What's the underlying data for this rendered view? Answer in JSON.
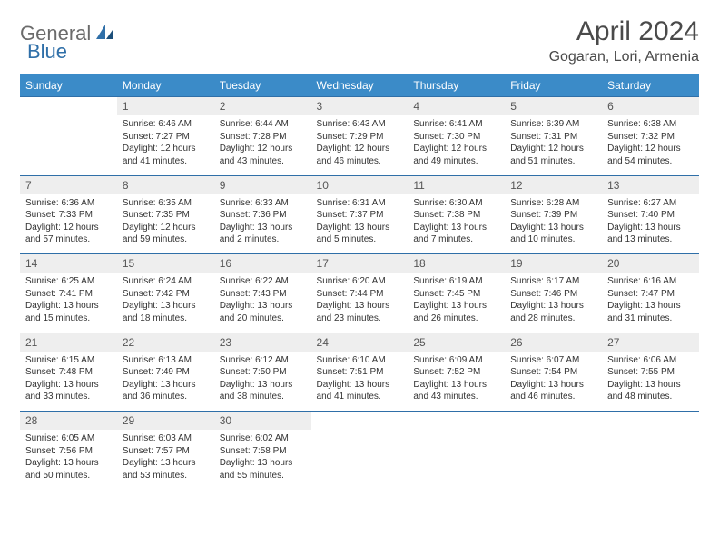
{
  "logo": {
    "part1": "General",
    "part2": "Blue"
  },
  "title": "April 2024",
  "location": "Gogaran, Lori, Armenia",
  "colors": {
    "header_bg": "#3b8bc8",
    "header_text": "#ffffff",
    "daynum_bg": "#eeeeee",
    "border": "#2f6fa8",
    "body_text": "#333333",
    "logo_gray": "#6b6b6b",
    "logo_blue": "#2f6fa8"
  },
  "weekdays": [
    "Sunday",
    "Monday",
    "Tuesday",
    "Wednesday",
    "Thursday",
    "Friday",
    "Saturday"
  ],
  "weeks": [
    [
      null,
      {
        "n": "1",
        "sr": "Sunrise: 6:46 AM",
        "ss": "Sunset: 7:27 PM",
        "dl1": "Daylight: 12 hours",
        "dl2": "and 41 minutes."
      },
      {
        "n": "2",
        "sr": "Sunrise: 6:44 AM",
        "ss": "Sunset: 7:28 PM",
        "dl1": "Daylight: 12 hours",
        "dl2": "and 43 minutes."
      },
      {
        "n": "3",
        "sr": "Sunrise: 6:43 AM",
        "ss": "Sunset: 7:29 PM",
        "dl1": "Daylight: 12 hours",
        "dl2": "and 46 minutes."
      },
      {
        "n": "4",
        "sr": "Sunrise: 6:41 AM",
        "ss": "Sunset: 7:30 PM",
        "dl1": "Daylight: 12 hours",
        "dl2": "and 49 minutes."
      },
      {
        "n": "5",
        "sr": "Sunrise: 6:39 AM",
        "ss": "Sunset: 7:31 PM",
        "dl1": "Daylight: 12 hours",
        "dl2": "and 51 minutes."
      },
      {
        "n": "6",
        "sr": "Sunrise: 6:38 AM",
        "ss": "Sunset: 7:32 PM",
        "dl1": "Daylight: 12 hours",
        "dl2": "and 54 minutes."
      }
    ],
    [
      {
        "n": "7",
        "sr": "Sunrise: 6:36 AM",
        "ss": "Sunset: 7:33 PM",
        "dl1": "Daylight: 12 hours",
        "dl2": "and 57 minutes."
      },
      {
        "n": "8",
        "sr": "Sunrise: 6:35 AM",
        "ss": "Sunset: 7:35 PM",
        "dl1": "Daylight: 12 hours",
        "dl2": "and 59 minutes."
      },
      {
        "n": "9",
        "sr": "Sunrise: 6:33 AM",
        "ss": "Sunset: 7:36 PM",
        "dl1": "Daylight: 13 hours",
        "dl2": "and 2 minutes."
      },
      {
        "n": "10",
        "sr": "Sunrise: 6:31 AM",
        "ss": "Sunset: 7:37 PM",
        "dl1": "Daylight: 13 hours",
        "dl2": "and 5 minutes."
      },
      {
        "n": "11",
        "sr": "Sunrise: 6:30 AM",
        "ss": "Sunset: 7:38 PM",
        "dl1": "Daylight: 13 hours",
        "dl2": "and 7 minutes."
      },
      {
        "n": "12",
        "sr": "Sunrise: 6:28 AM",
        "ss": "Sunset: 7:39 PM",
        "dl1": "Daylight: 13 hours",
        "dl2": "and 10 minutes."
      },
      {
        "n": "13",
        "sr": "Sunrise: 6:27 AM",
        "ss": "Sunset: 7:40 PM",
        "dl1": "Daylight: 13 hours",
        "dl2": "and 13 minutes."
      }
    ],
    [
      {
        "n": "14",
        "sr": "Sunrise: 6:25 AM",
        "ss": "Sunset: 7:41 PM",
        "dl1": "Daylight: 13 hours",
        "dl2": "and 15 minutes."
      },
      {
        "n": "15",
        "sr": "Sunrise: 6:24 AM",
        "ss": "Sunset: 7:42 PM",
        "dl1": "Daylight: 13 hours",
        "dl2": "and 18 minutes."
      },
      {
        "n": "16",
        "sr": "Sunrise: 6:22 AM",
        "ss": "Sunset: 7:43 PM",
        "dl1": "Daylight: 13 hours",
        "dl2": "and 20 minutes."
      },
      {
        "n": "17",
        "sr": "Sunrise: 6:20 AM",
        "ss": "Sunset: 7:44 PM",
        "dl1": "Daylight: 13 hours",
        "dl2": "and 23 minutes."
      },
      {
        "n": "18",
        "sr": "Sunrise: 6:19 AM",
        "ss": "Sunset: 7:45 PM",
        "dl1": "Daylight: 13 hours",
        "dl2": "and 26 minutes."
      },
      {
        "n": "19",
        "sr": "Sunrise: 6:17 AM",
        "ss": "Sunset: 7:46 PM",
        "dl1": "Daylight: 13 hours",
        "dl2": "and 28 minutes."
      },
      {
        "n": "20",
        "sr": "Sunrise: 6:16 AM",
        "ss": "Sunset: 7:47 PM",
        "dl1": "Daylight: 13 hours",
        "dl2": "and 31 minutes."
      }
    ],
    [
      {
        "n": "21",
        "sr": "Sunrise: 6:15 AM",
        "ss": "Sunset: 7:48 PM",
        "dl1": "Daylight: 13 hours",
        "dl2": "and 33 minutes."
      },
      {
        "n": "22",
        "sr": "Sunrise: 6:13 AM",
        "ss": "Sunset: 7:49 PM",
        "dl1": "Daylight: 13 hours",
        "dl2": "and 36 minutes."
      },
      {
        "n": "23",
        "sr": "Sunrise: 6:12 AM",
        "ss": "Sunset: 7:50 PM",
        "dl1": "Daylight: 13 hours",
        "dl2": "and 38 minutes."
      },
      {
        "n": "24",
        "sr": "Sunrise: 6:10 AM",
        "ss": "Sunset: 7:51 PM",
        "dl1": "Daylight: 13 hours",
        "dl2": "and 41 minutes."
      },
      {
        "n": "25",
        "sr": "Sunrise: 6:09 AM",
        "ss": "Sunset: 7:52 PM",
        "dl1": "Daylight: 13 hours",
        "dl2": "and 43 minutes."
      },
      {
        "n": "26",
        "sr": "Sunrise: 6:07 AM",
        "ss": "Sunset: 7:54 PM",
        "dl1": "Daylight: 13 hours",
        "dl2": "and 46 minutes."
      },
      {
        "n": "27",
        "sr": "Sunrise: 6:06 AM",
        "ss": "Sunset: 7:55 PM",
        "dl1": "Daylight: 13 hours",
        "dl2": "and 48 minutes."
      }
    ],
    [
      {
        "n": "28",
        "sr": "Sunrise: 6:05 AM",
        "ss": "Sunset: 7:56 PM",
        "dl1": "Daylight: 13 hours",
        "dl2": "and 50 minutes."
      },
      {
        "n": "29",
        "sr": "Sunrise: 6:03 AM",
        "ss": "Sunset: 7:57 PM",
        "dl1": "Daylight: 13 hours",
        "dl2": "and 53 minutes."
      },
      {
        "n": "30",
        "sr": "Sunrise: 6:02 AM",
        "ss": "Sunset: 7:58 PM",
        "dl1": "Daylight: 13 hours",
        "dl2": "and 55 minutes."
      },
      null,
      null,
      null,
      null
    ]
  ]
}
